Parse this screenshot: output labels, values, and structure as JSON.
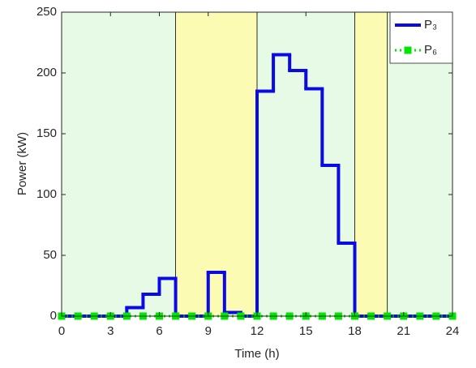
{
  "chart_data": {
    "type": "stairs",
    "x_label": "Time (h)",
    "y_label": "Power (kW)",
    "x": [
      0,
      1,
      2,
      3,
      4,
      5,
      6,
      7,
      8,
      9,
      10,
      11,
      12,
      13,
      14,
      15,
      16,
      17,
      18,
      19,
      20,
      21,
      22,
      23,
      24
    ],
    "series": [
      {
        "name": "P₃",
        "color": "#0a0ae6",
        "style": "stairs",
        "values": [
          0,
          0,
          0,
          0,
          7,
          18,
          31,
          0,
          0,
          36,
          3,
          0,
          185,
          215,
          202,
          187,
          124,
          60,
          0,
          0,
          0,
          0,
          0,
          0,
          0
        ]
      },
      {
        "name": "P₆",
        "color": "#00e600",
        "style": "dotted-markers",
        "values": [
          0,
          0,
          0,
          0,
          0,
          0,
          0,
          0,
          0,
          0,
          0,
          0,
          0,
          0,
          0,
          0,
          0,
          0,
          0,
          0,
          0,
          0,
          0,
          0,
          0
        ]
      }
    ],
    "bands": [
      {
        "start": 0,
        "end": 7,
        "color": "#e6fae6"
      },
      {
        "start": 7,
        "end": 12,
        "color": "#fbfbb4"
      },
      {
        "start": 12,
        "end": 18,
        "color": "#e6fae6"
      },
      {
        "start": 18,
        "end": 20,
        "color": "#fbfbb4"
      },
      {
        "start": 20,
        "end": 24,
        "color": "#e6fae6"
      }
    ],
    "xlim": [
      0,
      24
    ],
    "xticks": [
      0,
      3,
      6,
      9,
      12,
      15,
      18,
      21,
      24
    ],
    "ylim": [
      0,
      250
    ],
    "yticks": [
      0,
      50,
      100,
      150,
      200,
      250
    ],
    "legend": "top-right"
  }
}
